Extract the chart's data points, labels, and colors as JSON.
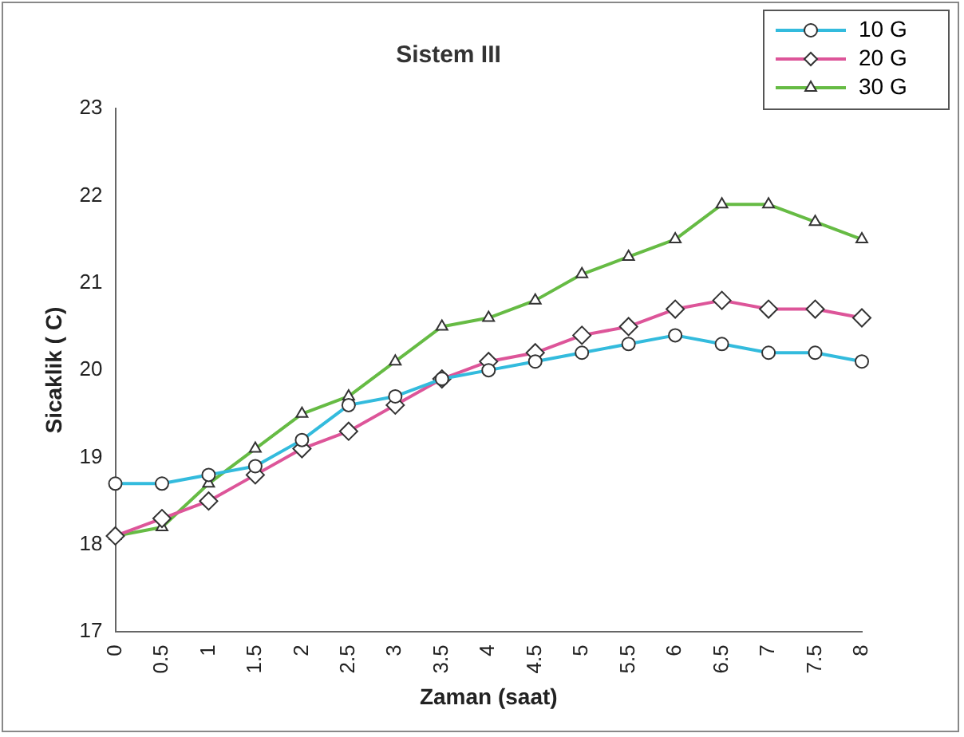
{
  "chart_data": {
    "type": "line",
    "title": "Sistem III",
    "xlabel": "Zaman (saat)",
    "ylabel": "Sicaklik ( C)",
    "categories": [
      "0",
      "0.5",
      "1",
      "1.5",
      "2",
      "2.5",
      "3",
      "3.5",
      "4",
      "4.5",
      "5",
      "5.5",
      "6",
      "6.5",
      "7",
      "7.5",
      "8"
    ],
    "ylim": [
      17,
      23
    ],
    "yticks": [
      17,
      18,
      19,
      20,
      21,
      22,
      23
    ],
    "grid": false,
    "legend": "top right",
    "series": [
      {
        "name": "10 G",
        "color": "#33bbdd",
        "marker": "circle",
        "values": [
          18.7,
          18.7,
          18.8,
          18.9,
          19.2,
          19.6,
          19.7,
          19.9,
          20.0,
          20.1,
          20.2,
          20.3,
          20.4,
          20.3,
          20.2,
          20.2,
          20.1
        ]
      },
      {
        "name": "20 G",
        "color": "#dd5599",
        "marker": "diamond",
        "values": [
          18.1,
          18.3,
          18.5,
          18.8,
          19.1,
          19.3,
          19.6,
          19.9,
          20.1,
          20.2,
          20.4,
          20.5,
          20.7,
          20.8,
          20.7,
          20.7,
          20.6
        ]
      },
      {
        "name": "30 G",
        "color": "#66bb44",
        "marker": "triangle",
        "values": [
          18.1,
          18.2,
          18.7,
          19.1,
          19.5,
          19.7,
          20.1,
          20.5,
          20.6,
          20.8,
          21.1,
          21.3,
          21.5,
          21.9,
          21.9,
          21.7,
          21.5
        ]
      }
    ]
  }
}
